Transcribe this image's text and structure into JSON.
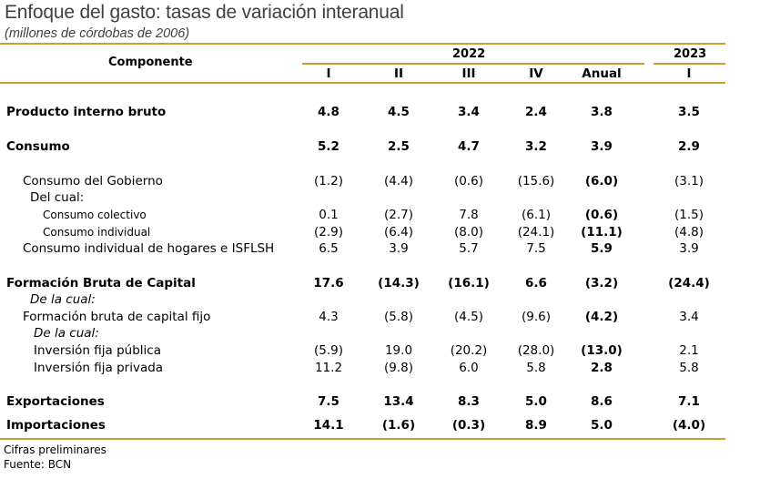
{
  "title": "Enfoque del gasto: tasas de variación interanual",
  "subtitle": "(millones de córdobas de 2006)",
  "header": {
    "componente": "Componente",
    "year_2022": "2022",
    "year_2023": "2023",
    "cols": [
      "I",
      "II",
      "III",
      "IV",
      "Anual",
      "I"
    ]
  },
  "rows": [
    {
      "label": "Producto interno bruto",
      "values": [
        "4.8",
        "4.5",
        "3.4",
        "2.4",
        "3.8",
        "3.5"
      ]
    },
    {
      "label": "Consumo",
      "values": [
        "5.2",
        "2.5",
        "4.7",
        "3.2",
        "3.9",
        "2.9"
      ]
    },
    {
      "label": "Consumo del Gobierno",
      "values": [
        "(1.2)",
        "(4.4)",
        "(0.6)",
        "(15.6)",
        "(6.0)",
        "(3.1)"
      ]
    },
    {
      "label": "Del cual:"
    },
    {
      "label": "Consumo colectivo",
      "values": [
        "0.1",
        "(2.7)",
        "7.8",
        "(6.1)",
        "(0.6)",
        "(1.5)"
      ]
    },
    {
      "label": "Consumo individual",
      "values": [
        "(2.9)",
        "(6.4)",
        "(8.0)",
        "(24.1)",
        "(11.1)",
        "(4.8)"
      ]
    },
    {
      "label": "Consumo individual de hogares e ISFLSH",
      "values": [
        "6.5",
        "3.9",
        "5.7",
        "7.5",
        "5.9",
        "3.9"
      ]
    },
    {
      "label": "Formación Bruta de Capital",
      "values": [
        "17.6",
        "(14.3)",
        "(16.1)",
        "6.6",
        "(3.2)",
        "(24.4)"
      ]
    },
    {
      "label": "De la cual:"
    },
    {
      "label": "Formación bruta de capital fijo",
      "values": [
        "4.3",
        "(5.8)",
        "(4.5)",
        "(9.6)",
        "(4.2)",
        "3.4"
      ]
    },
    {
      "label": "De la cual:"
    },
    {
      "label": "Inversión fija pública",
      "values": [
        "(5.9)",
        "19.0",
        "(20.2)",
        "(28.0)",
        "(13.0)",
        "2.1"
      ]
    },
    {
      "label": "Inversión fija privada",
      "values": [
        "11.2",
        "(9.8)",
        "6.0",
        "5.8",
        "2.8",
        "5.8"
      ]
    },
    {
      "label": "Exportaciones",
      "values": [
        "7.5",
        "13.4",
        "8.3",
        "5.0",
        "8.6",
        "7.1"
      ]
    },
    {
      "label": "Importaciones",
      "values": [
        "14.1",
        "(1.6)",
        "(0.3)",
        "8.9",
        "5.0",
        "(4.0)"
      ]
    }
  ],
  "footnotes": [
    "Cifras preliminares",
    "Fuente: BCN"
  ],
  "colors": {
    "rule": "#c8a02e",
    "title": "#404040"
  }
}
